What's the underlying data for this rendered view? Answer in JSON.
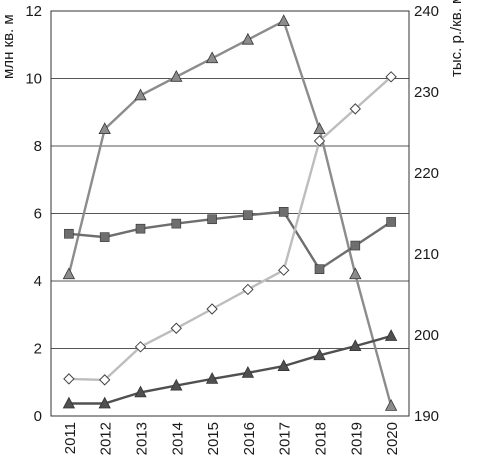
{
  "chart_data": {
    "type": "line",
    "categories": [
      "2011",
      "2012",
      "2013",
      "2014",
      "2015",
      "2016",
      "2017",
      "2018",
      "2019",
      "2020"
    ],
    "y_left": {
      "label": "млн кв. м",
      "range": [
        0,
        12
      ],
      "ticks": [
        "0",
        "2",
        "4",
        "6",
        "8",
        "10",
        "12"
      ]
    },
    "y_right": {
      "label": "тыс. р./кв. м",
      "range": [
        190,
        240
      ],
      "ticks": [
        "190",
        "200",
        "210",
        "220",
        "230",
        "240"
      ]
    },
    "grid": true,
    "legend": "none",
    "series": [
      {
        "axis": "left",
        "marker": "triangle",
        "color": "#8c8c8c",
        "values": [
          4.2,
          8.5,
          9.5,
          10.05,
          10.6,
          11.15,
          11.7,
          8.5,
          4.2,
          0.3
        ]
      },
      {
        "axis": "left",
        "marker": "square",
        "color": "#6e6e6e",
        "values": [
          5.4,
          5.3,
          5.55,
          5.7,
          5.83,
          5.95,
          6.05,
          4.35,
          5.05,
          5.75
        ]
      },
      {
        "axis": "left",
        "marker": "diamond",
        "color": "#bdbdbd",
        "values": [
          1.1,
          1.07,
          2.05,
          2.6,
          3.17,
          3.75,
          4.32,
          8.15,
          9.1,
          10.05
        ]
      },
      {
        "axis": "left",
        "marker": "triangle",
        "color": "#505050",
        "values": [
          0.37,
          0.37,
          0.7,
          0.9,
          1.1,
          1.28,
          1.48,
          1.8,
          2.07,
          2.37
        ]
      }
    ]
  }
}
